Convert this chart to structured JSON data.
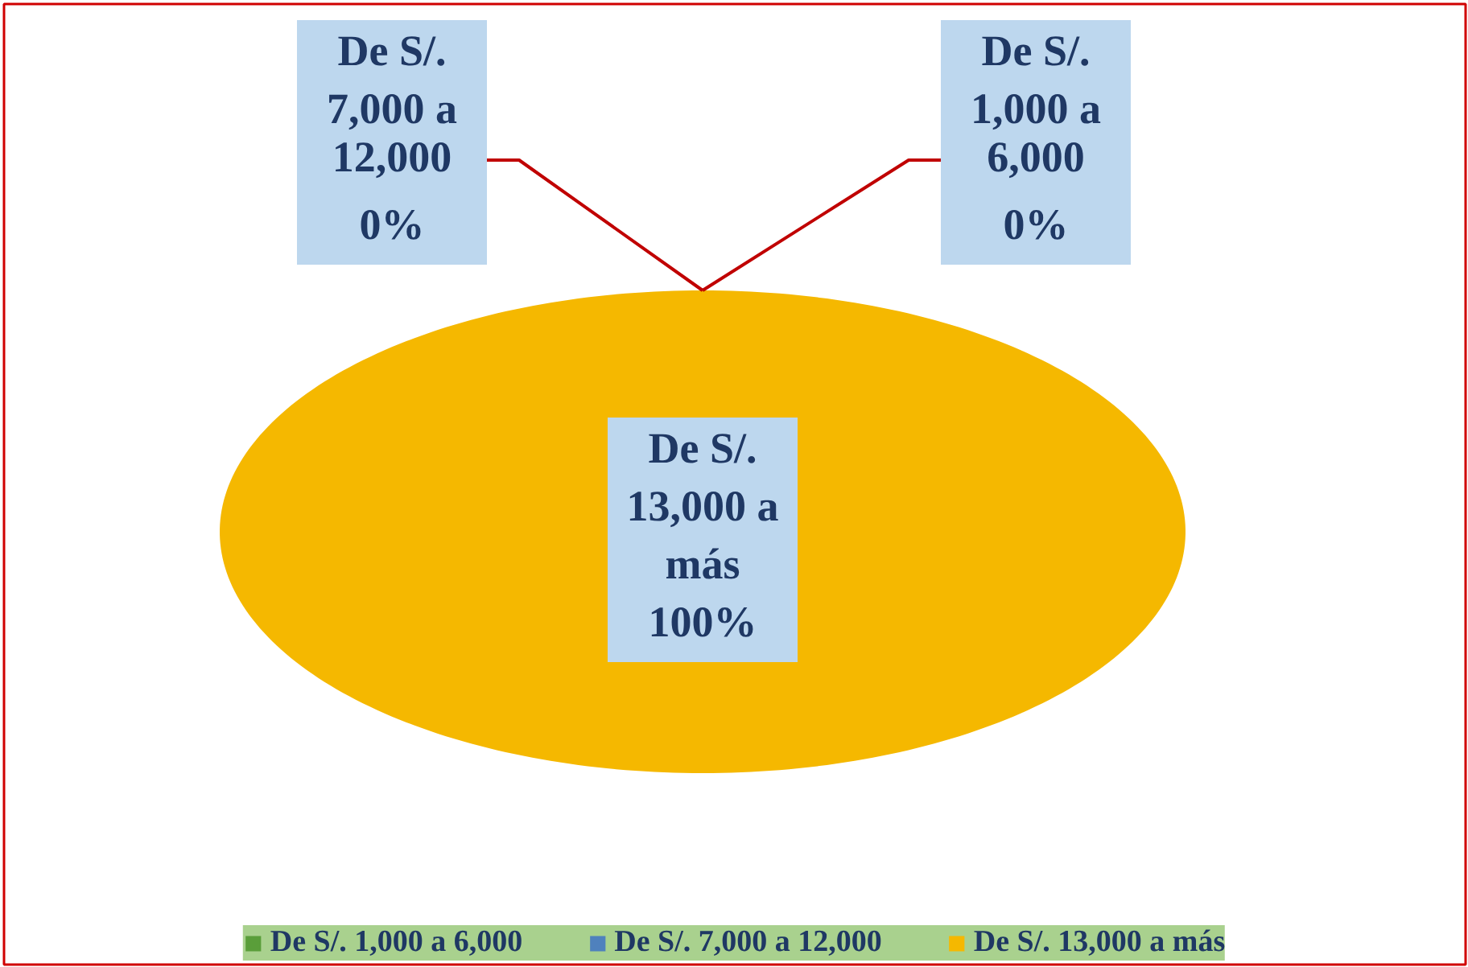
{
  "chart_data": {
    "type": "pie",
    "categories": [
      "De S/. 1,000 a 6,000",
      "De S/. 7,000 a 12,000",
      "De S/. 13,000 a más"
    ],
    "values": [
      0,
      0,
      100
    ],
    "colors": [
      "#5a9e3a",
      "#4f81bd",
      "#f5b800"
    ],
    "value_labels": [
      "De S/.\n1,000 a\n6,000\n0%",
      "De S/.\n7,000 a\n12,000\n0%",
      "De S/.\n13,000 a\nmás\n100%"
    ],
    "legend": "bottom"
  }
}
